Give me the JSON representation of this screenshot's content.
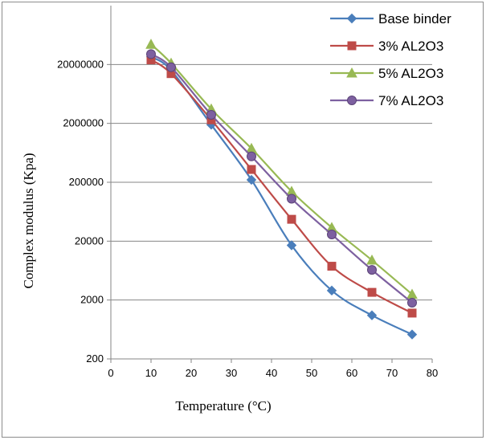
{
  "chart_data": {
    "type": "line",
    "title": "",
    "xlabel": "Temperature (°C)",
    "ylabel": "Complex modulus  (Kpa)",
    "xlim": [
      0,
      80
    ],
    "ylim": [
      200,
      200000000
    ],
    "y_scale": "log",
    "x_ticks": [
      0,
      10,
      20,
      30,
      40,
      50,
      60,
      70,
      80
    ],
    "y_ticks": [
      200,
      2000,
      20000,
      200000,
      2000000,
      20000000
    ],
    "y_tick_labels": [
      "200",
      "2000",
      "20000",
      "200000",
      "2000000",
      "20000000"
    ],
    "x_tick_labels": [
      "0",
      "10",
      "20",
      "30",
      "40",
      "50",
      "60",
      "70",
      "80"
    ],
    "grid": "horizontal",
    "legend_position": "top-right",
    "x": [
      10,
      15,
      25,
      35,
      45,
      55,
      65,
      75
    ],
    "series": [
      {
        "name": "Base binder",
        "color": "#4a7ebb",
        "marker": "diamond",
        "values": [
          27000000,
          16000000,
          1900000,
          220000,
          17000,
          2900,
          1100,
          520
        ]
      },
      {
        "name": "3% AL2O3",
        "color": "#be4b48",
        "marker": "square",
        "values": [
          24000000,
          14000000,
          2300000,
          330000,
          47000,
          7500,
          2700,
          1200
        ]
      },
      {
        "name": "5% AL2O3",
        "color": "#98b954",
        "marker": "triangle",
        "values": [
          44000000,
          21000000,
          3500000,
          750000,
          140000,
          34000,
          9500,
          2500
        ]
      },
      {
        "name": "7% AL2O3",
        "color": "#7d60a0",
        "marker": "circle",
        "values": [
          30000000,
          18000000,
          2800000,
          550000,
          105000,
          26000,
          6500,
          1800
        ]
      }
    ]
  }
}
